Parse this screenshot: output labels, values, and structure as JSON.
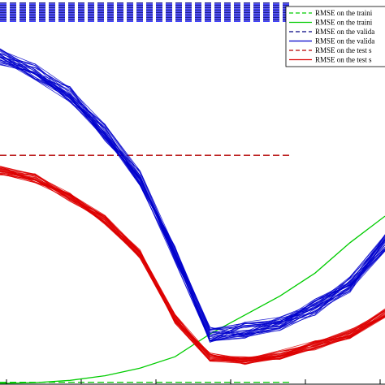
{
  "chart_data": {
    "type": "line",
    "title": "",
    "xlabel": "",
    "ylabel": "",
    "x": [
      0,
      1,
      2,
      3,
      4,
      5,
      6,
      7,
      8,
      9,
      10,
      11
    ],
    "xlim": [
      0,
      11
    ],
    "ylim": [
      0,
      1
    ],
    "grid": false,
    "legend_position": "top-right",
    "series": [
      {
        "name": "RMSE on the traini",
        "style": "dashed",
        "color": "#00cc00",
        "values": [
          0.003,
          0.003,
          0.003,
          0.003,
          0.003,
          0.003,
          0.003,
          0.003,
          0.003,
          0.003,
          0.003,
          0.003
        ]
      },
      {
        "name": "RMSE on the traini",
        "style": "solid",
        "color": "#00cc00",
        "values": [
          0.0,
          0.002,
          0.008,
          0.02,
          0.04,
          0.07,
          0.13,
          0.18,
          0.23,
          0.29,
          0.37,
          0.44
        ]
      },
      {
        "name": "RMSE on the valida",
        "style": "dashed",
        "color": "#000080",
        "values": [
          0.975,
          0.975,
          0.975,
          0.975,
          0.975,
          0.975,
          0.975,
          0.975,
          0.975,
          0.975,
          0.975,
          0.975
        ]
      },
      {
        "name": "RMSE on the valida",
        "style": "solid",
        "color": "#0000cc",
        "values": [
          0.86,
          0.82,
          0.76,
          0.66,
          0.54,
          0.34,
          0.13,
          0.14,
          0.16,
          0.2,
          0.26,
          0.37
        ]
      },
      {
        "name": "RMSE on the test s",
        "style": "dashed",
        "color": "#b30000",
        "values": [
          0.6,
          0.6,
          0.6,
          0.6,
          0.6,
          0.6,
          0.6,
          0.6,
          0.6,
          0.6,
          0.6,
          0.6
        ]
      },
      {
        "name": "RMSE on the test s",
        "style": "solid",
        "color": "#dd0000",
        "values": [
          0.56,
          0.54,
          0.49,
          0.43,
          0.34,
          0.17,
          0.07,
          0.06,
          0.075,
          0.1,
          0.13,
          0.185
        ]
      }
    ]
  }
}
